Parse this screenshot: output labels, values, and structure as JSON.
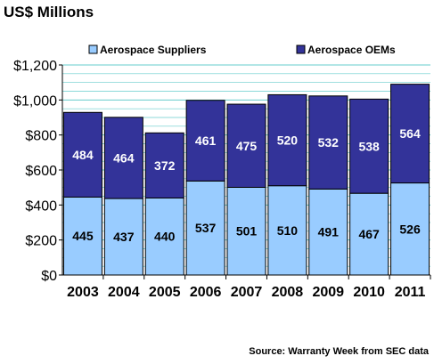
{
  "chart_data": {
    "type": "bar",
    "stacked": true,
    "title": "US$ Millions",
    "source": "Source: Warranty Week from SEC data",
    "categories": [
      "2003",
      "2004",
      "2005",
      "2006",
      "2007",
      "2008",
      "2009",
      "2010",
      "2011"
    ],
    "series": [
      {
        "name": "Aerospace Suppliers",
        "color": "#99ccff",
        "values": [
          445,
          437,
          440,
          537,
          501,
          510,
          491,
          467,
          526
        ]
      },
      {
        "name": "Aerospace OEMs",
        "color": "#333399",
        "values": [
          484,
          464,
          372,
          461,
          475,
          520,
          532,
          538,
          564
        ]
      }
    ],
    "ylim": [
      0,
      1200
    ],
    "y_ticks": [
      0,
      200,
      400,
      600,
      800,
      1000,
      1200
    ],
    "y_tick_labels": [
      "$0",
      "$200",
      "$400",
      "$600",
      "$800",
      "$1,000",
      "$1,200"
    ],
    "grid": true,
    "legend_position": "top",
    "plot_background": "#ffffff",
    "grid_color": "#66cccc"
  }
}
